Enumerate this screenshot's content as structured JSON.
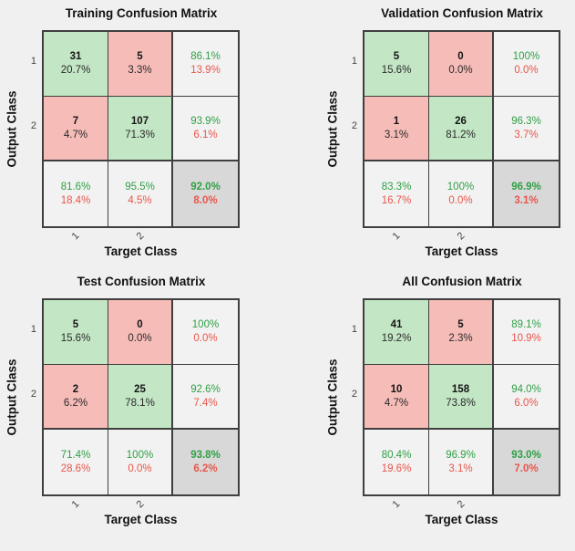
{
  "axes": {
    "x_label": "Target Class",
    "y_label": "Output Class",
    "tick1": "1",
    "tick2": "2"
  },
  "colors": {
    "background": "#f0f0f0",
    "correct_cell": "#c3e6c5",
    "incorrect_cell": "#f6bcb8",
    "summary_cell": "#f2f2f2",
    "total_cell": "#d8d8d8",
    "positive_text": "#2fa045",
    "negative_text": "#e8564b",
    "grid_border": "#3f3f3f"
  },
  "matrices": [
    {
      "title": "Training Confusion Matrix",
      "cells": [
        {
          "line1": "31",
          "line2": "20.7%"
        },
        {
          "line1": "5",
          "line2": "3.3%"
        },
        {
          "line1": "86.1%",
          "line2": "13.9%"
        },
        {
          "line1": "7",
          "line2": "4.7%"
        },
        {
          "line1": "107",
          "line2": "71.3%"
        },
        {
          "line1": "93.9%",
          "line2": "6.1%"
        },
        {
          "line1": "81.6%",
          "line2": "18.4%"
        },
        {
          "line1": "95.5%",
          "line2": "4.5%"
        },
        {
          "line1": "92.0%",
          "line2": "8.0%"
        }
      ]
    },
    {
      "title": "Validation Confusion Matrix",
      "cells": [
        {
          "line1": "5",
          "line2": "15.6%"
        },
        {
          "line1": "0",
          "line2": "0.0%"
        },
        {
          "line1": "100%",
          "line2": "0.0%"
        },
        {
          "line1": "1",
          "line2": "3.1%"
        },
        {
          "line1": "26",
          "line2": "81.2%"
        },
        {
          "line1": "96.3%",
          "line2": "3.7%"
        },
        {
          "line1": "83.3%",
          "line2": "16.7%"
        },
        {
          "line1": "100%",
          "line2": "0.0%"
        },
        {
          "line1": "96.9%",
          "line2": "3.1%"
        }
      ]
    },
    {
      "title": "Test Confusion Matrix",
      "cells": [
        {
          "line1": "5",
          "line2": "15.6%"
        },
        {
          "line1": "0",
          "line2": "0.0%"
        },
        {
          "line1": "100%",
          "line2": "0.0%"
        },
        {
          "line1": "2",
          "line2": "6.2%"
        },
        {
          "line1": "25",
          "line2": "78.1%"
        },
        {
          "line1": "92.6%",
          "line2": "7.4%"
        },
        {
          "line1": "71.4%",
          "line2": "28.6%"
        },
        {
          "line1": "100%",
          "line2": "0.0%"
        },
        {
          "line1": "93.8%",
          "line2": "6.2%"
        }
      ]
    },
    {
      "title": "All Confusion Matrix",
      "cells": [
        {
          "line1": "41",
          "line2": "19.2%"
        },
        {
          "line1": "5",
          "line2": "2.3%"
        },
        {
          "line1": "89.1%",
          "line2": "10.9%"
        },
        {
          "line1": "10",
          "line2": "4.7%"
        },
        {
          "line1": "158",
          "line2": "73.8%"
        },
        {
          "line1": "94.0%",
          "line2": "6.0%"
        },
        {
          "line1": "80.4%",
          "line2": "19.6%"
        },
        {
          "line1": "96.9%",
          "line2": "3.1%"
        },
        {
          "line1": "93.0%",
          "line2": "7.0%"
        }
      ]
    }
  ],
  "chart_data": [
    {
      "type": "heatmap",
      "title": "Training Confusion Matrix",
      "xlabel": "Target Class",
      "ylabel": "Output Class",
      "classes": [
        "1",
        "2"
      ],
      "counts": [
        [
          31,
          5
        ],
        [
          7,
          107
        ]
      ],
      "cell_pct": [
        [
          "20.7%",
          "3.3%"
        ],
        [
          "4.7%",
          "71.3%"
        ]
      ],
      "row_summary_pct": [
        [
          "86.1%",
          "13.9%"
        ],
        [
          "93.9%",
          "6.1%"
        ]
      ],
      "col_summary_pct": [
        [
          "81.6%",
          "18.4%"
        ],
        [
          "95.5%",
          "4.5%"
        ]
      ],
      "overall_pct": [
        "92.0%",
        "8.0%"
      ]
    },
    {
      "type": "heatmap",
      "title": "Validation Confusion Matrix",
      "xlabel": "Target Class",
      "ylabel": "Output Class",
      "classes": [
        "1",
        "2"
      ],
      "counts": [
        [
          5,
          0
        ],
        [
          1,
          26
        ]
      ],
      "cell_pct": [
        [
          "15.6%",
          "0.0%"
        ],
        [
          "3.1%",
          "81.2%"
        ]
      ],
      "row_summary_pct": [
        [
          "100%",
          "0.0%"
        ],
        [
          "96.3%",
          "3.7%"
        ]
      ],
      "col_summary_pct": [
        [
          "83.3%",
          "16.7%"
        ],
        [
          "100%",
          "0.0%"
        ]
      ],
      "overall_pct": [
        "96.9%",
        "3.1%"
      ]
    },
    {
      "type": "heatmap",
      "title": "Test Confusion Matrix",
      "xlabel": "Target Class",
      "ylabel": "Output Class",
      "classes": [
        "1",
        "2"
      ],
      "counts": [
        [
          5,
          0
        ],
        [
          2,
          25
        ]
      ],
      "cell_pct": [
        [
          "15.6%",
          "0.0%"
        ],
        [
          "6.2%",
          "78.1%"
        ]
      ],
      "row_summary_pct": [
        [
          "100%",
          "0.0%"
        ],
        [
          "92.6%",
          "7.4%"
        ]
      ],
      "col_summary_pct": [
        [
          "71.4%",
          "28.6%"
        ],
        [
          "100%",
          "0.0%"
        ]
      ],
      "overall_pct": [
        "93.8%",
        "6.2%"
      ]
    },
    {
      "type": "heatmap",
      "title": "All Confusion Matrix",
      "xlabel": "Target Class",
      "ylabel": "Output Class",
      "classes": [
        "1",
        "2"
      ],
      "counts": [
        [
          41,
          5
        ],
        [
          10,
          158
        ]
      ],
      "cell_pct": [
        [
          "19.2%",
          "2.3%"
        ],
        [
          "4.7%",
          "73.8%"
        ]
      ],
      "row_summary_pct": [
        [
          "89.1%",
          "10.9%"
        ],
        [
          "94.0%",
          "6.0%"
        ]
      ],
      "col_summary_pct": [
        [
          "80.4%",
          "19.6%"
        ],
        [
          "96.9%",
          "3.1%"
        ]
      ],
      "overall_pct": [
        "93.0%",
        "7.0%"
      ]
    }
  ]
}
